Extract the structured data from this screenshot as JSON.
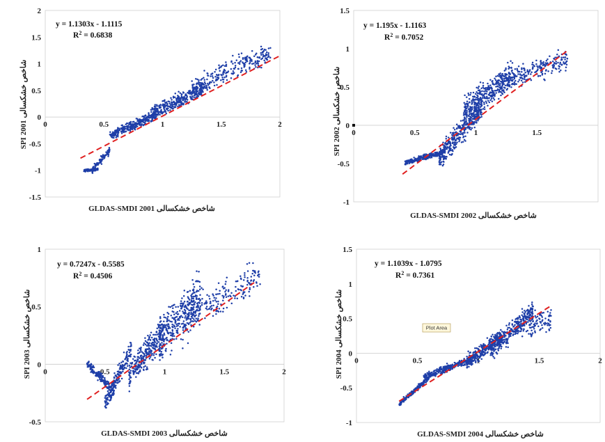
{
  "chart_data": [
    {
      "type": "scatter",
      "panel": "2001",
      "equation": "y = 1.1303x - 1.1115",
      "r2_prefix": "R",
      "r2_value": " = 0.6838",
      "ylabel": "SPI 2001 شاخص خشکسالی",
      "xlabel": "GLDAS-SMDI 2001 شاخص خشکسالی",
      "xlim": [
        0,
        2
      ],
      "ylim": [
        -1.5,
        2
      ],
      "xticks": [
        "0",
        "0.5",
        "1",
        "1.5",
        "2"
      ],
      "yticks": [
        "-1.5",
        "-1",
        "-0.5",
        "0",
        "0.5",
        "1",
        "1.5",
        "2"
      ],
      "trend": {
        "slope": 1.1303,
        "intercept": -1.1115,
        "x_range": [
          0.3,
          2.0
        ]
      },
      "point_color": "#1f3fa8",
      "trend_color": "#e02020",
      "clusters": [
        {
          "shape": "line",
          "x_range": [
            0.33,
            0.45
          ],
          "slope": 0.2,
          "intercept": -1.07,
          "spread": 0.03,
          "n": 140
        },
        {
          "shape": "line",
          "x_range": [
            0.4,
            0.55
          ],
          "slope": 2.4,
          "intercept": -1.95,
          "spread": 0.1,
          "n": 100
        },
        {
          "shape": "line",
          "x_range": [
            0.55,
            0.95
          ],
          "slope": 1.0,
          "intercept": -0.9,
          "spread": 0.12,
          "n": 300
        },
        {
          "shape": "line",
          "x_range": [
            0.9,
            1.35
          ],
          "slope": 1.1,
          "intercept": -0.95,
          "spread": 0.2,
          "n": 340
        },
        {
          "shape": "line",
          "x_range": [
            1.25,
            1.92
          ],
          "slope": 1.0,
          "intercept": -0.7,
          "spread": 0.3,
          "n": 260
        }
      ]
    },
    {
      "type": "scatter",
      "panel": "2002",
      "equation": "y = 1.195x - 1.1163",
      "r2_prefix": "R",
      "r2_value": " = 0.7052",
      "ylabel": "SPI 2002 شاخص خشکسالی",
      "xlabel": "GLDAS-SMDI 2002 شاخص خشکسالی",
      "xlim": [
        0,
        2
      ],
      "ylim": [
        -1,
        1.5
      ],
      "xticks": [
        "0",
        "0.5",
        "1",
        "1.5"
      ],
      "yticks": [
        "-1",
        "-0.5",
        "0",
        "0.5",
        "1",
        "1.5"
      ],
      "trend": {
        "slope": 1.195,
        "intercept": -1.1163,
        "x_range": [
          0.4,
          1.75
        ]
      },
      "point_color": "#1f3fa8",
      "trend_color": "#e02020",
      "clusters": [
        {
          "shape": "line",
          "x_range": [
            0.42,
            0.75
          ],
          "slope": 0.45,
          "intercept": -0.68,
          "spread": 0.05,
          "n": 260
        },
        {
          "shape": "line",
          "x_range": [
            0.7,
            1.05
          ],
          "slope": 1.9,
          "intercept": -1.75,
          "spread": 0.22,
          "n": 380
        },
        {
          "shape": "line",
          "x_range": [
            0.9,
            1.3
          ],
          "slope": 1.2,
          "intercept": -0.9,
          "spread": 0.25,
          "n": 360
        },
        {
          "shape": "line",
          "x_range": [
            1.2,
            1.75
          ],
          "slope": 0.55,
          "intercept": -0.1,
          "spread": 0.2,
          "n": 240
        }
      ]
    },
    {
      "type": "scatter",
      "panel": "2003",
      "equation": "y = 0.7247x - 0.5585",
      "r2_prefix": "R",
      "r2_value": " = 0.4506",
      "ylabel": "SPI 2003 شاخص خشکسالی",
      "xlabel": "GLDAS-SMDI 2003 شاخص خشکسالی",
      "xlim": [
        0,
        2
      ],
      "ylim": [
        -0.5,
        1
      ],
      "xticks": [
        "0",
        "0.5",
        "1",
        "1.5",
        "2"
      ],
      "yticks": [
        "-0.5",
        "0",
        "0.5",
        "1"
      ],
      "trend": {
        "slope": 0.7247,
        "intercept": -0.5585,
        "x_range": [
          0.35,
          1.75
        ]
      },
      "point_color": "#1f3fa8",
      "trend_color": "#e02020",
      "clusters": [
        {
          "shape": "line",
          "x_range": [
            0.35,
            0.55
          ],
          "slope": -1.0,
          "intercept": 0.35,
          "spread": 0.06,
          "n": 160
        },
        {
          "shape": "line",
          "x_range": [
            0.5,
            0.72
          ],
          "slope": 2.2,
          "intercept": -1.45,
          "spread": 0.12,
          "n": 220
        },
        {
          "shape": "line",
          "x_range": [
            0.7,
            1.0
          ],
          "slope": 1.3,
          "intercept": -1.0,
          "spread": 0.18,
          "n": 320
        },
        {
          "shape": "line",
          "x_range": [
            0.95,
            1.3
          ],
          "slope": 1.1,
          "intercept": -0.85,
          "spread": 0.3,
          "n": 320
        },
        {
          "shape": "line",
          "x_range": [
            1.15,
            1.8
          ],
          "slope": 0.5,
          "intercept": -0.15,
          "spread": 0.22,
          "n": 220
        }
      ]
    },
    {
      "type": "scatter",
      "panel": "2004",
      "equation": "y = 1.1039x - 1.0795",
      "r2_prefix": "R",
      "r2_value": " = 0.7361",
      "ylabel": "SPI 2004 شاخص خشکسالی",
      "xlabel": "GLDAS-SMDI 2004 شاخص خشکسالی",
      "xlim": [
        0,
        2
      ],
      "ylim": [
        -1,
        1.5
      ],
      "xticks": [
        "0",
        "0.5",
        "1",
        "1.5",
        "2"
      ],
      "yticks": [
        "-1",
        "-0.5",
        "0",
        "0.5",
        "1",
        "1.5"
      ],
      "trend": {
        "slope": 1.1039,
        "intercept": -1.0795,
        "x_range": [
          0.35,
          1.6
        ]
      },
      "point_color": "#1f3fa8",
      "trend_color": "#e02020",
      "callout": "Plot Area",
      "clusters": [
        {
          "shape": "line",
          "x_range": [
            0.35,
            0.6
          ],
          "slope": 1.6,
          "intercept": -1.3,
          "spread": 0.05,
          "n": 220
        },
        {
          "shape": "line",
          "x_range": [
            0.55,
            0.95
          ],
          "slope": 0.65,
          "intercept": -0.7,
          "spread": 0.07,
          "n": 280
        },
        {
          "shape": "line",
          "x_range": [
            0.9,
            1.2
          ],
          "slope": 1.3,
          "intercept": -1.3,
          "spread": 0.15,
          "n": 300
        },
        {
          "shape": "line",
          "x_range": [
            1.1,
            1.45
          ],
          "slope": 1.7,
          "intercept": -1.85,
          "spread": 0.2,
          "n": 280
        },
        {
          "shape": "line",
          "x_range": [
            1.3,
            1.6
          ],
          "slope": 0.3,
          "intercept": 0.0,
          "spread": 0.25,
          "n": 140
        }
      ]
    }
  ]
}
